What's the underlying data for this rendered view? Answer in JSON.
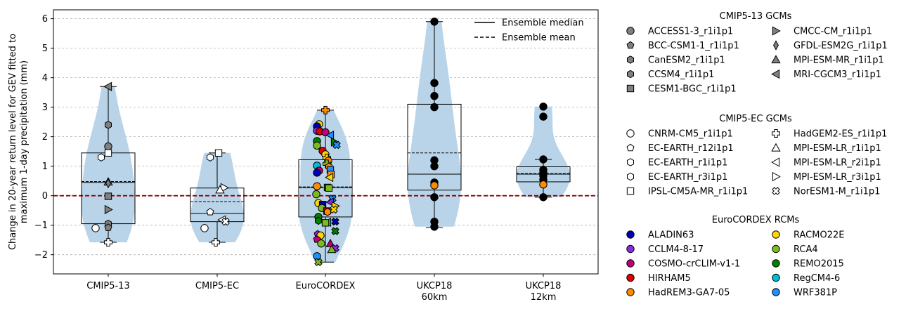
{
  "chart_data": {
    "type": "box-violin-strip",
    "ylabel_lines": [
      "Change in 20-year return level for GEV fitted to",
      "maximum 1-day precipitation (mm)"
    ],
    "ylim": [
      -2.65,
      6.3
    ],
    "yticks": [
      -2,
      -1,
      0,
      1,
      2,
      3,
      4,
      5,
      6
    ],
    "grid": "horizontal dashed",
    "reference_line": 0,
    "categories": [
      {
        "lines": [
          "CMIP5-13"
        ]
      },
      {
        "lines": [
          "CMIP5-EC"
        ]
      },
      {
        "lines": [
          "EuroCORDEX"
        ]
      },
      {
        "lines": [
          "UKCP18",
          "60km"
        ]
      },
      {
        "lines": [
          "UKCP18",
          "12km"
        ]
      }
    ],
    "box_legend": [
      {
        "label": "Ensemble median",
        "style": "solid"
      },
      {
        "label": "Ensemble mean",
        "style": "dashed"
      }
    ],
    "boxes": [
      {
        "q1": -0.95,
        "median": 0.45,
        "mean": 0.48,
        "q3": 1.45,
        "whisker_low": -1.58,
        "whisker_high": 3.7
      },
      {
        "q1": -0.88,
        "median": -0.6,
        "mean": -0.2,
        "q3": 0.26,
        "whisker_low": -1.58,
        "whisker_high": 1.45
      },
      {
        "q1": -0.72,
        "median": 0.27,
        "mean": 0.3,
        "q3": 1.22,
        "whisker_low": -2.25,
        "whisker_high": 2.9
      },
      {
        "q1": 0.19,
        "median": 0.73,
        "mean": 1.45,
        "q3": 3.1,
        "whisker_low": -1.08,
        "whisker_high": 5.9
      },
      {
        "q1": 0.47,
        "median": 0.73,
        "mean": 0.75,
        "q3": 0.98,
        "whisker_low": -0.05,
        "whisker_high": 1.23
      }
    ],
    "points": [
      [
        {
          "y": 3.7,
          "x": 0.0,
          "m": "tri-left",
          "f": "#808080"
        },
        {
          "y": 2.4,
          "x": 0.0,
          "m": "hexagon",
          "f": "#808080"
        },
        {
          "y": 1.67,
          "x": 0.0,
          "m": "circle",
          "f": "#808080"
        },
        {
          "y": 1.45,
          "x": 0.0,
          "m": "square",
          "f": "#ffffff"
        },
        {
          "y": 1.3,
          "x": -0.1,
          "m": "hexagon",
          "f": "#ffffff"
        },
        {
          "y": 0.47,
          "x": 0.0,
          "m": "tri-up",
          "f": "#808080"
        },
        {
          "y": 0.42,
          "x": 0.0,
          "m": "diamond",
          "f": "#808080"
        },
        {
          "y": -0.02,
          "x": 0.0,
          "m": "square",
          "f": "#808080"
        },
        {
          "y": -0.47,
          "x": 0.0,
          "m": "tri-right",
          "f": "#808080"
        },
        {
          "y": -0.95,
          "x": 0.0,
          "m": "hexagon",
          "f": "#808080"
        },
        {
          "y": -1.08,
          "x": 0.0,
          "m": "pentagon",
          "f": "#808080"
        },
        {
          "y": -1.1,
          "x": -0.18,
          "m": "circle",
          "f": "#ffffff"
        },
        {
          "y": -1.58,
          "x": 0.0,
          "m": "plus",
          "f": "#ffffff"
        }
      ],
      [
        {
          "y": 1.45,
          "x": 0.02,
          "m": "square",
          "f": "#ffffff"
        },
        {
          "y": 1.3,
          "x": -0.1,
          "m": "hexagon",
          "f": "#ffffff"
        },
        {
          "y": 0.27,
          "x": 0.1,
          "m": "tri-right",
          "f": "#ffffff"
        },
        {
          "y": 0.2,
          "x": 0.04,
          "m": "tri-up",
          "f": "#ffffff"
        },
        {
          "y": -0.55,
          "x": -0.1,
          "m": "pentagon",
          "f": "#ffffff"
        },
        {
          "y": -0.82,
          "x": 0.07,
          "m": "tri-left",
          "f": "#ffffff"
        },
        {
          "y": -0.88,
          "x": 0.12,
          "m": "cross",
          "f": "#ffffff"
        },
        {
          "y": -1.1,
          "x": -0.18,
          "m": "circle",
          "f": "#ffffff"
        },
        {
          "y": -1.58,
          "x": -0.02,
          "m": "plus",
          "f": "#ffffff"
        }
      ],
      [
        {
          "y": 2.9,
          "x": 0.0,
          "m": "plus",
          "f": "#ff8c00"
        },
        {
          "y": 2.42,
          "x": -0.09,
          "m": "circle",
          "f": "#ffd700"
        },
        {
          "y": 2.35,
          "x": -0.12,
          "m": "circle",
          "f": "#0000b0"
        },
        {
          "y": 2.2,
          "x": -0.12,
          "m": "circle",
          "f": "#8a2be2"
        },
        {
          "y": 2.18,
          "x": -0.08,
          "m": "circle",
          "f": "#e00000"
        },
        {
          "y": 2.15,
          "x": 0.0,
          "m": "circle",
          "f": "#c0007a"
        },
        {
          "y": 2.05,
          "x": 0.07,
          "m": "tri-left",
          "f": "#1e90ff"
        },
        {
          "y": 1.85,
          "x": -0.12,
          "m": "circle",
          "f": "#008000"
        },
        {
          "y": 1.82,
          "x": 0.13,
          "m": "tri-right",
          "f": "#008000"
        },
        {
          "y": 1.72,
          "x": 0.16,
          "m": "cross",
          "f": "#1e90ff"
        },
        {
          "y": 1.7,
          "x": -0.12,
          "m": "circle",
          "f": "#7cbb1e"
        },
        {
          "y": 1.52,
          "x": -0.04,
          "m": "circle",
          "f": "#e00000"
        },
        {
          "y": 1.4,
          "x": 0.0,
          "m": "circle",
          "f": "#ffd700"
        },
        {
          "y": 1.28,
          "x": 0.02,
          "m": "plus",
          "f": "#ffd700"
        },
        {
          "y": 1.18,
          "x": 0.04,
          "m": "circle",
          "f": "#ff8c00"
        },
        {
          "y": 1.08,
          "x": 0.02,
          "m": "plus",
          "f": "#7cbb1e"
        },
        {
          "y": 1.02,
          "x": -0.12,
          "m": "circle",
          "f": "#00bcd4"
        },
        {
          "y": 0.98,
          "x": 0.05,
          "m": "hexagon",
          "f": "#ff8c00"
        },
        {
          "y": 0.88,
          "x": 0.07,
          "m": "square",
          "f": "#1e90ff"
        },
        {
          "y": 0.85,
          "x": -0.09,
          "m": "circle",
          "f": "#c0007a"
        },
        {
          "y": 0.78,
          "x": -0.12,
          "m": "circle",
          "f": "#0000b0"
        },
        {
          "y": 0.72,
          "x": 0.08,
          "m": "square",
          "f": "#ff8c00"
        },
        {
          "y": 0.62,
          "x": 0.06,
          "m": "tri-left",
          "f": "#ffd700"
        },
        {
          "y": 0.32,
          "x": -0.12,
          "m": "circle",
          "f": "#ff8c00"
        },
        {
          "y": 0.28,
          "x": 0.03,
          "m": "square",
          "f": "#008000"
        },
        {
          "y": 0.26,
          "x": 0.05,
          "m": "square",
          "f": "#7cbb1e"
        },
        {
          "y": 0.05,
          "x": -0.13,
          "m": "circle",
          "f": "#7cbb1e"
        },
        {
          "y": -0.1,
          "x": 0.1,
          "m": "cross",
          "f": "#1e90ff"
        },
        {
          "y": -0.22,
          "x": 0.07,
          "m": "tri-left",
          "f": "#8a2be2"
        },
        {
          "y": -0.25,
          "x": -0.1,
          "m": "circle",
          "f": "#ffd700"
        },
        {
          "y": -0.3,
          "x": -0.04,
          "m": "square",
          "f": "#0000b0"
        },
        {
          "y": -0.35,
          "x": 0.14,
          "m": "tri-right",
          "f": "#ffd700"
        },
        {
          "y": -0.42,
          "x": -0.05,
          "m": "circle",
          "f": "#7cbb1e"
        },
        {
          "y": -0.47,
          "x": 0.12,
          "m": "cross",
          "f": "#ffd700"
        },
        {
          "y": -0.52,
          "x": 0.02,
          "m": "square",
          "f": "#e00000"
        },
        {
          "y": -0.55,
          "x": 0.03,
          "m": "hexagon",
          "f": "#ff8c00"
        },
        {
          "y": -0.72,
          "x": -0.1,
          "m": "circle",
          "f": "#008000"
        },
        {
          "y": -0.85,
          "x": -0.1,
          "m": "hexagon",
          "f": "#008000"
        },
        {
          "y": -0.88,
          "x": 0.14,
          "m": "cross",
          "f": "#0000b0"
        },
        {
          "y": -0.9,
          "x": 0.03,
          "m": "tri-left",
          "f": "#00bcd4"
        },
        {
          "y": -0.92,
          "x": 0.0,
          "m": "square",
          "f": "#7cbb1e"
        },
        {
          "y": -1.2,
          "x": 0.14,
          "m": "cross",
          "f": "#008000"
        },
        {
          "y": -1.3,
          "x": -0.11,
          "m": "pentagon",
          "f": "#8a2be2"
        },
        {
          "y": -1.35,
          "x": -0.07,
          "m": "circle",
          "f": "#ffd700"
        },
        {
          "y": -1.48,
          "x": -0.12,
          "m": "pentagon",
          "f": "#c0007a"
        },
        {
          "y": -1.62,
          "x": -0.06,
          "m": "circle",
          "f": "#7cbb1e"
        },
        {
          "y": -1.62,
          "x": 0.07,
          "m": "tri-up",
          "f": "#c0007a"
        },
        {
          "y": -1.78,
          "x": 0.14,
          "m": "cross",
          "f": "#8a2be2"
        },
        {
          "y": -1.82,
          "x": 0.09,
          "m": "tri-up",
          "f": "#7cbb1e"
        },
        {
          "y": -2.05,
          "x": -0.12,
          "m": "circle",
          "f": "#1e90ff"
        },
        {
          "y": -2.25,
          "x": -0.1,
          "m": "cross",
          "f": "#7cbb1e"
        }
      ],
      [
        {
          "y": 5.9,
          "x": 0.0,
          "m": "circle",
          "f": "#000000"
        },
        {
          "y": 3.82,
          "x": 0.0,
          "m": "circle",
          "f": "#000000"
        },
        {
          "y": 3.38,
          "x": 0.0,
          "m": "circle",
          "f": "#000000"
        },
        {
          "y": 3.0,
          "x": 0.0,
          "m": "circle",
          "f": "#000000"
        },
        {
          "y": 1.2,
          "x": 0.0,
          "m": "circle",
          "f": "#000000"
        },
        {
          "y": 1.0,
          "x": 0.0,
          "m": "circle",
          "f": "#000000"
        },
        {
          "y": 0.45,
          "x": 0.0,
          "m": "circle",
          "f": "#000000"
        },
        {
          "y": 0.35,
          "x": 0.0,
          "m": "circle",
          "f": "#ff8c00"
        },
        {
          "y": -0.05,
          "x": 0.0,
          "m": "circle",
          "f": "#000000"
        },
        {
          "y": -0.88,
          "x": 0.0,
          "m": "circle",
          "f": "#000000"
        },
        {
          "y": -1.05,
          "x": 0.0,
          "m": "circle",
          "f": "#000000"
        }
      ],
      [
        {
          "y": 3.02,
          "x": 0.0,
          "m": "circle",
          "f": "#000000"
        },
        {
          "y": 2.68,
          "x": 0.0,
          "m": "circle",
          "f": "#000000"
        },
        {
          "y": 1.23,
          "x": 0.0,
          "m": "circle",
          "f": "#000000"
        },
        {
          "y": 0.88,
          "x": 0.0,
          "m": "circle",
          "f": "#000000"
        },
        {
          "y": 0.78,
          "x": 0.0,
          "m": "circle",
          "f": "#000000"
        },
        {
          "y": 0.68,
          "x": 0.0,
          "m": "circle",
          "f": "#000000"
        },
        {
          "y": 0.55,
          "x": 0.0,
          "m": "circle",
          "f": "#000000"
        },
        {
          "y": 0.38,
          "x": 0.0,
          "m": "circle",
          "f": "#ff8c00"
        },
        {
          "y": -0.05,
          "x": 0.0,
          "m": "circle",
          "f": "#000000"
        }
      ]
    ]
  },
  "legend": {
    "cmip13": {
      "title": "CMIP5-13 GCMs",
      "col1": [
        {
          "label": "ACCESS1-3_r1i1p1",
          "m": "circle",
          "f": "#808080"
        },
        {
          "label": "BCC-CSM1-1_r1i1p1",
          "m": "pentagon",
          "f": "#808080"
        },
        {
          "label": "CanESM2_r1i1p1",
          "m": "hexagon",
          "f": "#808080"
        },
        {
          "label": "CCSM4_r1i1p1",
          "m": "hexagon",
          "f": "#808080"
        },
        {
          "label": "CESM1-BGC_r1i1p1",
          "m": "square",
          "f": "#808080"
        }
      ],
      "col2": [
        {
          "label": "CMCC-CM_r1i1p1",
          "m": "tri-right",
          "f": "#808080"
        },
        {
          "label": "GFDL-ESM2G_r1i1p1",
          "m": "diamond",
          "f": "#808080"
        },
        {
          "label": "MPI-ESM-MR_r1i1p1",
          "m": "tri-up",
          "f": "#808080"
        },
        {
          "label": "MRI-CGCM3_r1i1p1",
          "m": "tri-left",
          "f": "#808080"
        }
      ]
    },
    "cmipec": {
      "title": "CMIP5-EC GCMs",
      "col1": [
        {
          "label": "CNRM-CM5_r1i1p1",
          "m": "circle",
          "f": "#ffffff"
        },
        {
          "label": "EC-EARTH_r12i1p1",
          "m": "pentagon",
          "f": "#ffffff"
        },
        {
          "label": "EC-EARTH_r1i1p1",
          "m": "hexagon",
          "f": "#ffffff"
        },
        {
          "label": "EC-EARTH_r3i1p1",
          "m": "hexagon",
          "f": "#ffffff"
        },
        {
          "label": "IPSL-CM5A-MR_r1i1p1",
          "m": "square",
          "f": "#ffffff"
        }
      ],
      "col2": [
        {
          "label": "HadGEM2-ES_r1i1p1",
          "m": "plus",
          "f": "#ffffff"
        },
        {
          "label": "MPI-ESM-LR_r1i1p1",
          "m": "tri-up",
          "f": "#ffffff"
        },
        {
          "label": "MPI-ESM-LR_r2i1p1",
          "m": "tri-left",
          "f": "#ffffff"
        },
        {
          "label": "MPI-ESM-LR_r3i1p1",
          "m": "tri-right",
          "f": "#ffffff"
        },
        {
          "label": "NorESM1-M_r1i1p1",
          "m": "cross",
          "f": "#ffffff"
        }
      ]
    },
    "rcm": {
      "title": "EuroCORDEX RCMs",
      "col1": [
        {
          "label": "ALADIN63",
          "m": "circle",
          "f": "#0000b0"
        },
        {
          "label": "CCLM4-8-17",
          "m": "circle",
          "f": "#8a2be2"
        },
        {
          "label": "COSMO-crCLIM-v1-1",
          "m": "circle",
          "f": "#c0007a"
        },
        {
          "label": "HIRHAM5",
          "m": "circle",
          "f": "#e00000"
        },
        {
          "label": "HadREM3-GA7-05",
          "m": "circle",
          "f": "#ff8c00"
        }
      ],
      "col2": [
        {
          "label": "RACMO22E",
          "m": "circle",
          "f": "#ffd700"
        },
        {
          "label": "RCA4",
          "m": "circle",
          "f": "#7cbb1e"
        },
        {
          "label": "REMO2015",
          "m": "circle",
          "f": "#008000"
        },
        {
          "label": "RegCM4-6",
          "m": "circle",
          "f": "#00bcd4"
        },
        {
          "label": "WRF381P",
          "m": "circle",
          "f": "#1e90ff"
        }
      ]
    }
  },
  "colors": {
    "violin": "#b9d4e9",
    "zero_line": "#8b0000",
    "grid": "#b0b0b0"
  }
}
